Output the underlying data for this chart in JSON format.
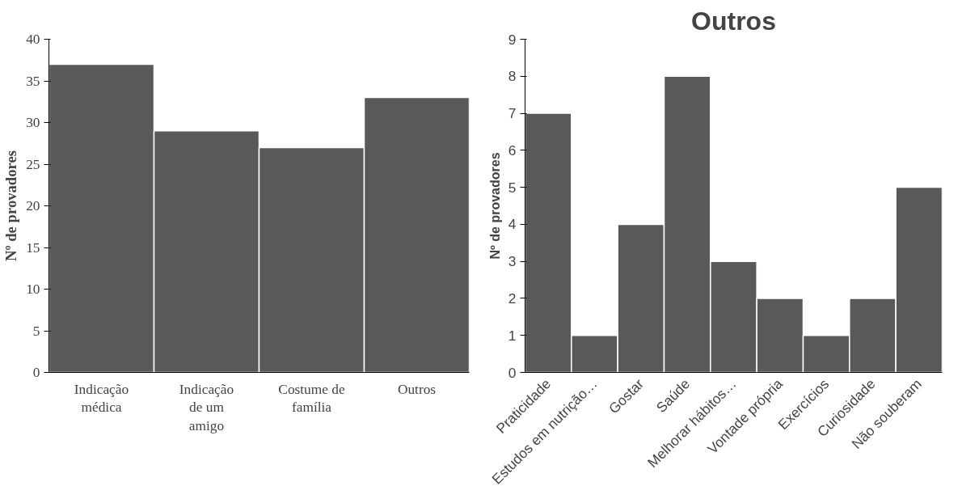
{
  "chart_data": [
    {
      "type": "bar",
      "ylabel": "Nº de provadores",
      "categories": [
        "Indicação médica",
        "Indicação de um amigo",
        "Costume de família",
        "Outros"
      ],
      "values": [
        37,
        29,
        27,
        33
      ],
      "color": "#595959",
      "ylim": [
        0,
        40
      ],
      "yticks": [
        0,
        5,
        10,
        15,
        20,
        25,
        30,
        35,
        40
      ]
    },
    {
      "type": "bar",
      "title": "Outros",
      "ylabel": "Nº de provadores",
      "categories": [
        "Praticidade",
        "Estudos em nutrição…",
        "Gostar",
        "Saúde",
        "Melhorar hábitos…",
        "Vontade própria",
        "Exercícios",
        "Curiosidade",
        "Não souberam"
      ],
      "values": [
        7,
        1,
        4,
        8,
        3,
        2,
        1,
        2,
        5
      ],
      "color": "#595959",
      "ylim": [
        0,
        9
      ],
      "yticks": [
        0,
        1,
        2,
        3,
        4,
        5,
        6,
        7,
        8,
        9
      ]
    }
  ]
}
